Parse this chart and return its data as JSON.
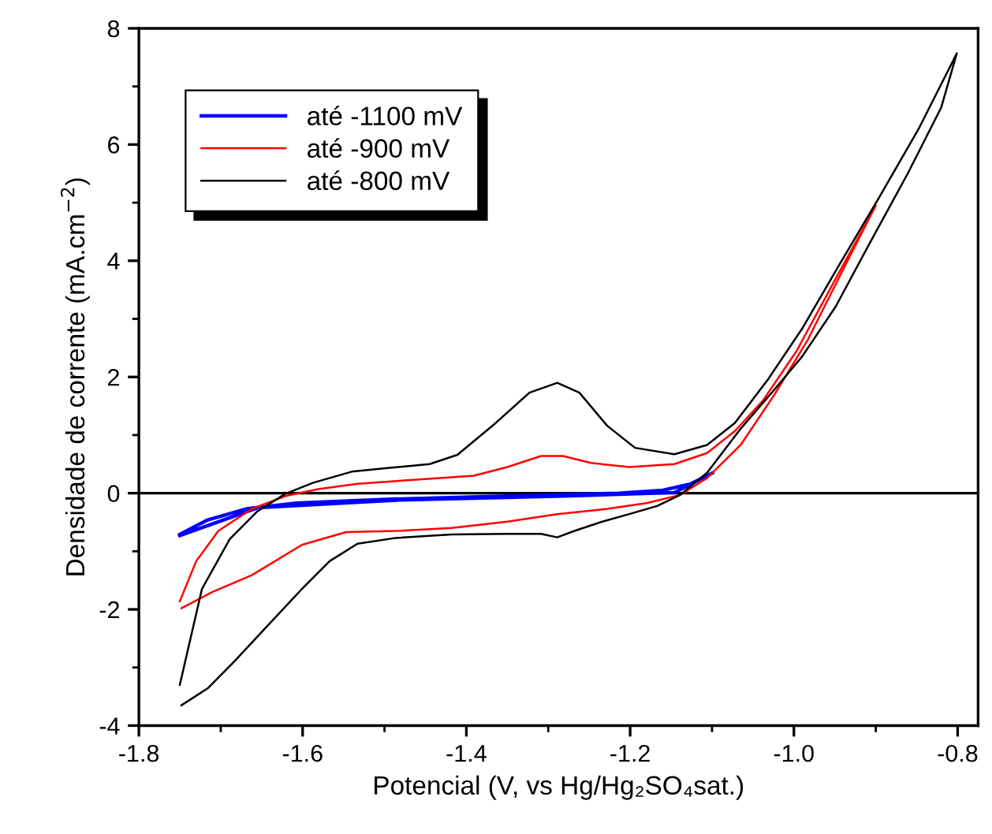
{
  "chart_data": {
    "type": "line",
    "xlabel": "Potencial (V, vs Hg/Hg₂SO₄sat.)",
    "ylabel": "Densidade de corrente (mA.cm$^{−2}$)",
    "xlim": [
      -1.8,
      -0.775
    ],
    "xticks": [
      {
        "value": -1.8,
        "label": "-1.8"
      },
      {
        "value": -1.6,
        "label": "-1.6"
      },
      {
        "value": -1.4,
        "label": "-1.4"
      },
      {
        "value": -1.2,
        "label": "-1.2"
      },
      {
        "value": -1.0,
        "label": "-1.0"
      },
      {
        "value": -0.8,
        "label": "-0.8"
      }
    ],
    "ylim": [
      -4,
      8
    ],
    "yticks": [
      {
        "value": -4,
        "label": "-4"
      },
      {
        "value": -2,
        "label": "-2"
      },
      0,
      2,
      4,
      6,
      8
    ],
    "grid": false,
    "legend": "top left",
    "line_style": "solid",
    "marker": "none",
    "ref_lines": [
      {
        "axis": "y",
        "value": 0,
        "color": "#000000"
      }
    ],
    "series": [
      {
        "name": "até -1100 mV",
        "color": "#0000ff",
        "x": [
          -1.75,
          -1.716,
          -1.669,
          -1.608,
          -1.486,
          -1.35,
          -1.214,
          -1.16,
          -1.126,
          -1.099,
          -1.146,
          -1.282,
          -1.486,
          -1.655,
          -1.75
        ],
        "values": [
          -0.71,
          -0.46,
          -0.27,
          -0.17,
          -0.1,
          -0.05,
          0.0,
          0.05,
          0.16,
          0.35,
          0.01,
          -0.05,
          -0.12,
          -0.25,
          -0.73
        ]
      },
      {
        "name": "até -900 mV",
        "color": "#ff0000",
        "x": [
          -1.75,
          -1.73,
          -1.703,
          -1.662,
          -1.621,
          -1.581,
          -1.533,
          -1.465,
          -1.391,
          -1.35,
          -1.309,
          -1.282,
          -1.248,
          -1.201,
          -1.146,
          -1.106,
          -1.072,
          -1.038,
          -0.997,
          -0.949,
          -0.9,
          -0.942,
          -0.983,
          -1.024,
          -1.065,
          -1.106,
          -1.139,
          -1.18,
          -1.228,
          -1.289,
          -1.35,
          -1.418,
          -1.486,
          -1.547,
          -1.601,
          -1.662,
          -1.71,
          -1.748
        ],
        "values": [
          -1.86,
          -1.17,
          -0.65,
          -0.27,
          -0.05,
          0.07,
          0.16,
          0.23,
          0.3,
          0.45,
          0.64,
          0.64,
          0.52,
          0.45,
          0.5,
          0.69,
          1.07,
          1.59,
          2.44,
          3.69,
          4.95,
          3.79,
          2.64,
          1.69,
          0.83,
          0.26,
          -0.03,
          -0.17,
          -0.27,
          -0.36,
          -0.49,
          -0.6,
          -0.65,
          -0.67,
          -0.89,
          -1.41,
          -1.7,
          -1.98
        ]
      },
      {
        "name": "até -800 mV",
        "color": "#000000",
        "x": [
          -1.75,
          -1.723,
          -1.689,
          -1.655,
          -1.621,
          -1.587,
          -1.54,
          -1.499,
          -1.445,
          -1.411,
          -1.364,
          -1.323,
          -1.289,
          -1.262,
          -1.228,
          -1.194,
          -1.146,
          -1.106,
          -1.072,
          -1.031,
          -0.99,
          -0.943,
          -0.895,
          -0.848,
          -0.801,
          -0.82,
          -0.861,
          -0.909,
          -0.949,
          -0.99,
          -1.024,
          -1.065,
          -1.106,
          -1.139,
          -1.167,
          -1.201,
          -1.234,
          -1.268,
          -1.289,
          -1.309,
          -1.35,
          -1.418,
          -1.486,
          -1.533,
          -1.567,
          -1.601,
          -1.642,
          -1.683,
          -1.716,
          -1.748
        ],
        "values": [
          -3.3,
          -1.65,
          -0.79,
          -0.31,
          -0.01,
          0.18,
          0.37,
          0.43,
          0.5,
          0.66,
          1.21,
          1.73,
          1.9,
          1.73,
          1.16,
          0.78,
          0.67,
          0.83,
          1.21,
          1.97,
          2.83,
          3.97,
          5.11,
          6.26,
          7.57,
          6.64,
          5.5,
          4.26,
          3.21,
          2.35,
          1.78,
          1.11,
          0.35,
          -0.03,
          -0.22,
          -0.36,
          -0.49,
          -0.65,
          -0.76,
          -0.7,
          -0.7,
          -0.71,
          -0.77,
          -0.87,
          -1.17,
          -1.65,
          -2.27,
          -2.89,
          -3.36,
          -3.65
        ]
      }
    ]
  }
}
